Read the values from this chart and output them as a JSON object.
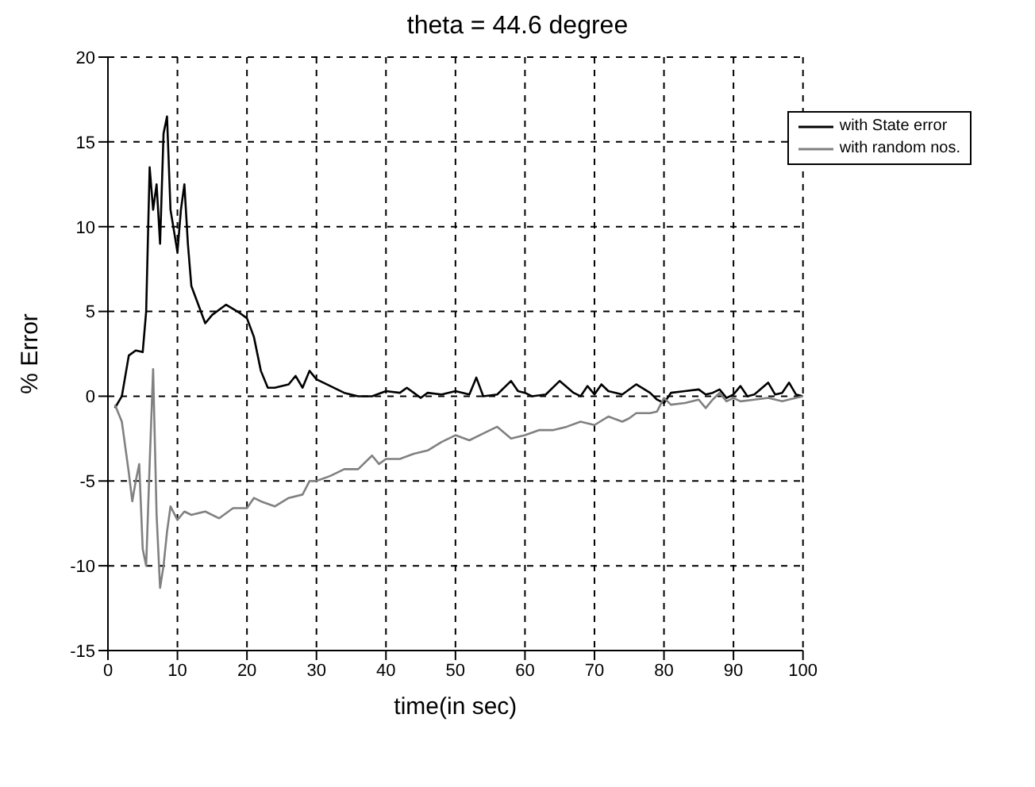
{
  "chart_data": {
    "type": "line",
    "title": "theta = 44.6 degree",
    "xlabel": "time(in sec)",
    "ylabel": "% Error",
    "xlim": [
      0,
      100
    ],
    "xticks": [
      0,
      10,
      20,
      30,
      40,
      50,
      60,
      70,
      80,
      90,
      100
    ],
    "ylim": [
      -15,
      20
    ],
    "yticks": [
      -15,
      -10,
      -5,
      0,
      5,
      10,
      15,
      20
    ],
    "grid": true,
    "legend": "top right",
    "marker": "none",
    "line_style": "solid",
    "series": [
      {
        "name": "with State error",
        "color": "#000000",
        "x": [
          1,
          2,
          3,
          4,
          5,
          5.5,
          6,
          6.5,
          7,
          7.5,
          8,
          8.5,
          9,
          10,
          10.5,
          11,
          11.5,
          12,
          14,
          15,
          17,
          19,
          20,
          21,
          22,
          23,
          24,
          26,
          27,
          28,
          29,
          30,
          32,
          34,
          36,
          38,
          40,
          42,
          43,
          44,
          45,
          46,
          48,
          50,
          52,
          53,
          54,
          56,
          58,
          59,
          60,
          61,
          63,
          65,
          67,
          68,
          69,
          70,
          71,
          72,
          74,
          76,
          78,
          79,
          80,
          81,
          83,
          85,
          86,
          87,
          88,
          89,
          90,
          91,
          92,
          93,
          95,
          96,
          97,
          98,
          99,
          100
        ],
        "values": [
          -0.7,
          0,
          2.4,
          2.7,
          2.6,
          5,
          13.5,
          11,
          12.5,
          9,
          15.5,
          16.5,
          11,
          8.5,
          11,
          12.5,
          9,
          6.5,
          4.3,
          4.8,
          5.4,
          4.9,
          4.6,
          3.5,
          1.5,
          0.5,
          0.5,
          0.7,
          1.2,
          0.5,
          1.5,
          1,
          0.6,
          0.2,
          0,
          0,
          0.3,
          0.2,
          0.5,
          0.2,
          -0.1,
          0.2,
          0.1,
          0.3,
          0.1,
          1.1,
          0,
          0.1,
          0.9,
          0.3,
          0.2,
          0,
          0.1,
          0.9,
          0.2,
          0,
          0.6,
          0.1,
          0.7,
          0.3,
          0.1,
          0.7,
          0.2,
          -0.2,
          -0.4,
          0.2,
          0.3,
          0.4,
          0.1,
          0.2,
          0.4,
          -0.1,
          0.1,
          0.6,
          0,
          0.1,
          0.8,
          0.1,
          0.2,
          0.8,
          0.1,
          0
        ]
      },
      {
        "name": "with random nos.",
        "color": "#808080",
        "x": [
          1,
          2,
          3,
          3.5,
          4,
          4.5,
          5,
          5.5,
          6,
          6.5,
          7,
          7.5,
          8,
          8.5,
          9,
          10,
          11,
          12,
          14,
          16,
          18,
          20,
          21,
          22,
          24,
          26,
          28,
          29,
          30,
          32,
          34,
          36,
          38,
          39,
          40,
          42,
          44,
          46,
          48,
          50,
          52,
          54,
          56,
          58,
          60,
          62,
          64,
          66,
          68,
          70,
          72,
          74,
          75,
          76,
          78,
          79,
          80,
          81,
          83,
          85,
          86,
          87,
          88,
          89,
          90,
          91,
          93,
          95,
          97,
          99,
          100
        ],
        "values": [
          -0.5,
          -1.5,
          -4.5,
          -6.2,
          -5,
          -4,
          -9,
          -10,
          -4,
          1.6,
          -7,
          -11.3,
          -10,
          -8,
          -6.5,
          -7.3,
          -6.8,
          -7,
          -6.8,
          -7.2,
          -6.6,
          -6.6,
          -6,
          -6.2,
          -6.5,
          -6,
          -5.8,
          -5,
          -5,
          -4.7,
          -4.3,
          -4.3,
          -3.5,
          -4,
          -3.7,
          -3.7,
          -3.4,
          -3.2,
          -2.7,
          -2.3,
          -2.6,
          -2.2,
          -1.8,
          -2.5,
          -2.3,
          -2,
          -2,
          -1.8,
          -1.5,
          -1.7,
          -1.2,
          -1.5,
          -1.3,
          -1,
          -1,
          -0.9,
          -0.1,
          -0.5,
          -0.4,
          -0.2,
          -0.7,
          -0.2,
          0.2,
          -0.3,
          -0.1,
          -0.3,
          -0.2,
          -0.1,
          -0.3,
          -0.1,
          0
        ]
      }
    ]
  }
}
